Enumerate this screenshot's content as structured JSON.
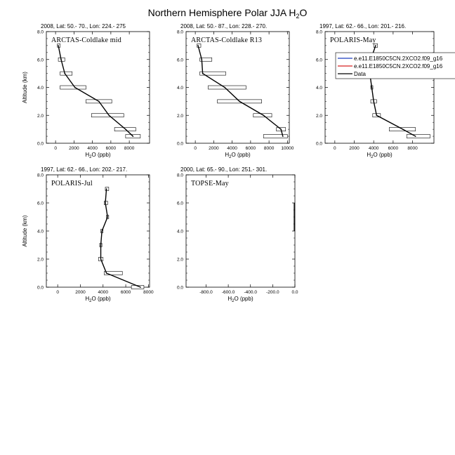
{
  "figure": {
    "title_main": "Northern Hemisphere Polar JJA H",
    "title_sub": "2",
    "title_tail": "O"
  },
  "chart_data": [
    {
      "type": "line",
      "id": "arctas-mid",
      "header": "2008, Lat:  50.- 70., Lon: 224.- 275",
      "label": "ARCTAS-Coldlake mid",
      "xlabel": "H2O (ppb)",
      "ylabel": "Altitude (km)",
      "xlim": [
        -1000,
        10200
      ],
      "ylim": [
        0,
        8
      ],
      "xticks": [
        0,
        2000,
        4000,
        6000,
        8000
      ],
      "xtick_labels": [
        "0",
        "2000",
        "4000",
        "6000",
        "8000"
      ],
      "yticks": [
        0,
        2,
        4,
        6,
        8
      ],
      "ytick_labels": [
        "0.0",
        "2.0",
        "4.0",
        "6.0",
        "8.0"
      ],
      "data": {
        "altitude": [
          0.5,
          1.0,
          2.0,
          3.0,
          4.0,
          5.0,
          6.0,
          7.0
        ],
        "h2o": [
          8400,
          7600,
          5800,
          4700,
          2100,
          1000,
          600,
          300
        ],
        "box_left": [
          7600,
          6400,
          3900,
          3300,
          500,
          500,
          300,
          200
        ],
        "box_right": [
          9200,
          8700,
          7400,
          6100,
          3300,
          1800,
          1000,
          500
        ]
      }
    },
    {
      "type": "line",
      "id": "arctas-r13",
      "header": "2008, Lat:  50.- 87., Lon: 228.- 270.",
      "label": "ARCTAS-Coldlake R13",
      "xlabel": "H2O (ppb)",
      "ylabel": "",
      "xlim": [
        -1000,
        10200
      ],
      "ylim": [
        0,
        8
      ],
      "xticks": [
        0,
        2000,
        4000,
        6000,
        8000,
        10000
      ],
      "xtick_labels": [
        "0",
        "2000",
        "4000",
        "6000",
        "8000",
        "10000"
      ],
      "yticks": [
        0,
        2,
        4,
        6,
        8
      ],
      "ytick_labels": [
        "0.0",
        "2.0",
        "4.0",
        "6.0",
        "8.0"
      ],
      "data": {
        "altitude": [
          0.5,
          1.0,
          2.0,
          3.0,
          4.0,
          5.0,
          6.0,
          7.0
        ],
        "h2o": [
          9500,
          9300,
          7400,
          4800,
          3200,
          800,
          700,
          300
        ],
        "box_left": [
          7400,
          8800,
          6300,
          2400,
          1400,
          500,
          500,
          200
        ],
        "box_right": [
          10000,
          9800,
          8300,
          7200,
          5500,
          3300,
          1800,
          600
        ]
      }
    },
    {
      "type": "line",
      "id": "polaris-may",
      "header": "1997, Lat: 62.- 66., Lon: 201.- 216.",
      "label": "POLARIS-May",
      "xlabel": "H2O (ppb)",
      "ylabel": "",
      "xlim": [
        -1000,
        10200
      ],
      "ylim": [
        0,
        8
      ],
      "xticks": [
        0,
        2000,
        4000,
        6000,
        8000
      ],
      "xtick_labels": [
        "0",
        "2000",
        "4000",
        "6000",
        "8000"
      ],
      "yticks": [
        0,
        2,
        4,
        6,
        8
      ],
      "ytick_labels": [
        "0.0",
        "2.0",
        "4.0",
        "6.0",
        "8.0"
      ],
      "data": {
        "altitude": [
          0.5,
          1.0,
          2.0,
          3.0,
          4.0,
          5.0,
          6.0,
          7.0
        ],
        "h2o": [
          8300,
          7000,
          4300,
          4000,
          3800,
          3600,
          3700,
          4200
        ],
        "box_left": [
          7400,
          5600,
          3900,
          3700,
          3700,
          3400,
          3600,
          4000
        ],
        "box_right": [
          9800,
          8300,
          4700,
          4300,
          3900,
          3800,
          3900,
          4400
        ]
      },
      "legend": {
        "entries": [
          {
            "name": "e.e11.E1850C5CN.2XCO2.f09_g16",
            "color": "#1f3fbf"
          },
          {
            "name": "e.e11.E1850C5CN.2XCO2.f09_g16",
            "color": "#d62020"
          },
          {
            "name": "Data",
            "color": "#000000"
          }
        ]
      }
    },
    {
      "type": "line",
      "id": "polaris-jul",
      "header": "1997, Lat: 62.- 66., Lon: 202.- 217.",
      "label": "POLARIS-Jul",
      "xlabel": "H2O (ppb)",
      "ylabel": "Altitude (km)",
      "xlim": [
        -1000,
        8100
      ],
      "ylim": [
        0,
        8
      ],
      "xticks": [
        0,
        2000,
        4000,
        6000,
        8000
      ],
      "xtick_labels": [
        "0",
        "2000",
        "4000",
        "6000",
        "8000"
      ],
      "yticks": [
        0,
        2,
        4,
        6,
        8
      ],
      "ytick_labels": [
        "0.0",
        "2.0",
        "4.0",
        "6.0",
        "8.0"
      ],
      "data": {
        "altitude": [
          0.0,
          1.0,
          2.0,
          3.0,
          4.0,
          5.0,
          6.0,
          7.0
        ],
        "h2o": [
          7300,
          4300,
          3800,
          3800,
          3900,
          4400,
          4200,
          4300
        ],
        "box_left": [
          6500,
          4100,
          3600,
          3700,
          3800,
          4300,
          4100,
          4200
        ],
        "box_right": [
          7600,
          5700,
          4000,
          3900,
          4000,
          4500,
          4400,
          4500
        ]
      }
    },
    {
      "type": "line",
      "id": "topse-may",
      "header": "2000, Lat: 65.- 90., Lon: 251.- 301.",
      "label": "TOPSE-May",
      "xlabel": "H2O (ppb)",
      "ylabel": "",
      "xlim": [
        -980,
        0
      ],
      "ylim": [
        0,
        8
      ],
      "xticks": [
        -800,
        -600,
        -400,
        -200,
        0
      ],
      "xtick_labels": [
        "-800.0",
        "-600.0",
        "-400.0",
        "-200.0",
        "0.0"
      ],
      "yticks": [
        0,
        2,
        4,
        6,
        8
      ],
      "ytick_labels": [
        "0.0",
        "2.0",
        "4.0",
        "6.0",
        "8.0"
      ],
      "data": {
        "altitude": [],
        "h2o": [],
        "box_left": [],
        "box_right": []
      }
    }
  ]
}
